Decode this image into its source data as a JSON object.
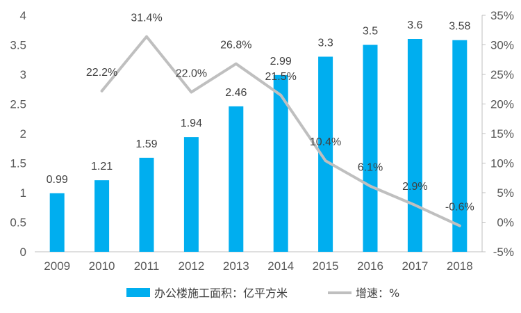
{
  "chart_data": {
    "type": "bar+line",
    "categories": [
      "2009",
      "2010",
      "2011",
      "2012",
      "2013",
      "2014",
      "2015",
      "2016",
      "2017",
      "2018"
    ],
    "series": [
      {
        "name": "办公楼施工面积：亿平方米",
        "type": "bar",
        "axis": "left",
        "values": [
          0.99,
          1.21,
          1.59,
          1.94,
          2.46,
          2.99,
          3.3,
          3.5,
          3.6,
          3.58
        ],
        "labels": [
          "0.99",
          "1.21",
          "1.59",
          "1.94",
          "2.46",
          "2.99",
          "3.3",
          "3.5",
          "3.6",
          "3.58"
        ],
        "color": "#00AEEF"
      },
      {
        "name": "增速：%",
        "type": "line",
        "axis": "right",
        "values": [
          null,
          22.2,
          31.4,
          22.0,
          26.8,
          21.5,
          10.4,
          6.1,
          2.9,
          -0.6
        ],
        "labels": [
          "",
          "22.2%",
          "31.4%",
          "22.0%",
          "26.8%",
          "21.5%",
          "10.4%",
          "6.1%",
          "2.9%",
          "-0.6%"
        ],
        "color": "#BFBFBF"
      }
    ],
    "y_left": {
      "range": [
        0,
        4
      ],
      "ticks": [
        0,
        0.5,
        1,
        1.5,
        2,
        2.5,
        3,
        3.5,
        4
      ],
      "tick_labels": [
        "0",
        "0.5",
        "1",
        "1.5",
        "2",
        "2.5",
        "3",
        "3.5",
        "4"
      ]
    },
    "y_right": {
      "range": [
        -5,
        35
      ],
      "ticks": [
        -5,
        0,
        5,
        10,
        15,
        20,
        25,
        30,
        35
      ],
      "tick_labels": [
        "-5%",
        "0%",
        "5%",
        "10%",
        "15%",
        "20%",
        "25%",
        "30%",
        "35%"
      ]
    },
    "grid": false,
    "legend_position": "bottom"
  }
}
